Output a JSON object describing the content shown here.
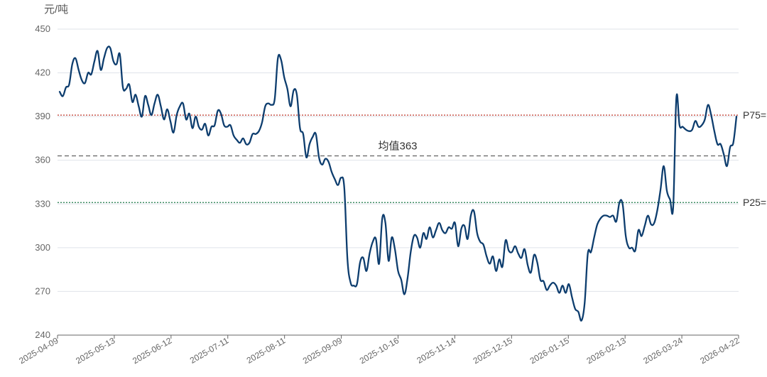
{
  "chart_data": {
    "type": "line",
    "unit_label": "元/吨",
    "ylim": [
      240,
      450
    ],
    "y_ticks": [
      240,
      270,
      300,
      330,
      360,
      390,
      420,
      450
    ],
    "x_tick_labels": [
      "2025-04-09",
      "2025-05-13",
      "2025-06-12",
      "2025-07-11",
      "2025-08-11",
      "2025-09-09",
      "2025-10-16",
      "2025-11-14",
      "2025-12-15",
      "2026-01-15",
      "2026-02-13",
      "2026-03-24",
      "2026-04-22"
    ],
    "grid": true,
    "colors": {
      "line": "#0d3d6e",
      "mean": "#555555",
      "p75": "#c0392b",
      "p25": "#1e7a4a",
      "grid": "#dfe3ea",
      "axis": "#666666"
    },
    "reference_lines": {
      "mean": {
        "label": "均值363",
        "value": 363
      },
      "p75": {
        "label": "P75=",
        "value": 391
      },
      "p25": {
        "label": "P25=",
        "value": 331
      }
    },
    "series": [
      {
        "values": [
          407,
          404,
          410,
          412,
          426,
          430,
          422,
          415,
          413,
          420,
          419,
          428,
          435,
          422,
          430,
          437,
          437,
          428,
          426,
          433,
          410,
          409,
          412,
          400,
          405,
          397,
          390,
          404,
          398,
          391,
          399,
          405,
          397,
          388,
          395,
          387,
          379,
          391,
          397,
          399,
          388,
          392,
          382,
          390,
          383,
          381,
          385,
          377,
          383,
          384,
          394,
          392,
          384,
          383,
          384,
          377,
          374,
          372,
          375,
          371,
          372,
          378,
          378,
          380,
          386,
          397,
          399,
          398,
          402,
          430,
          429,
          417,
          409,
          397,
          408,
          405,
          382,
          378,
          362,
          371,
          376,
          378,
          362,
          357,
          361,
          359,
          352,
          347,
          343,
          348,
          341,
          292,
          276,
          274,
          275,
          290,
          293,
          284,
          296,
          304,
          306,
          289,
          320,
          317,
          291,
          307,
          299,
          284,
          278,
          268,
          279,
          297,
          308,
          307,
          300,
          310,
          306,
          314,
          307,
          312,
          317,
          312,
          310,
          314,
          313,
          317,
          301,
          313,
          315,
          306,
          322,
          325,
          310,
          304,
          302,
          294,
          289,
          294,
          284,
          292,
          287,
          305,
          298,
          297,
          301,
          296,
          293,
          299,
          288,
          283,
          295,
          290,
          278,
          277,
          271,
          274,
          276,
          274,
          269,
          274,
          269,
          275,
          266,
          258,
          256,
          250,
          262,
          296,
          297,
          307,
          316,
          320,
          322,
          322,
          321,
          322,
          318,
          331,
          330,
          308,
          300,
          300,
          298,
          312,
          308,
          315,
          322,
          316,
          317,
          326,
          340,
          356,
          339,
          333,
          328,
          403,
          384,
          383,
          381,
          380,
          381,
          387,
          383,
          384,
          388,
          398,
          391,
          380,
          371,
          371,
          364,
          356,
          369,
          372,
          390
        ]
      }
    ]
  }
}
